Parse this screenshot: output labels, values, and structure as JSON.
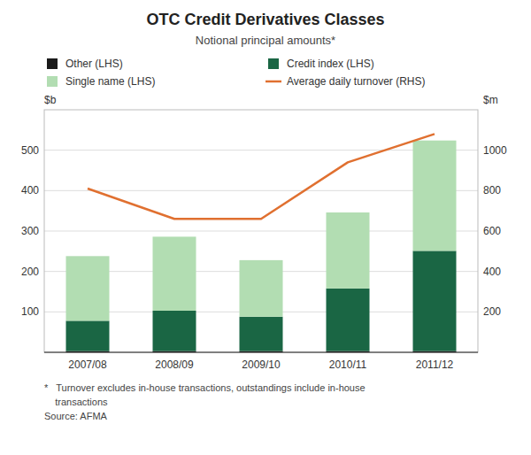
{
  "chart_data": {
    "type": "bar",
    "stacked": true,
    "title": "OTC Credit Derivatives Classes",
    "subtitle": "Notional principal amounts*",
    "ylabel": "$b",
    "y2label": "$m",
    "footnotes": [
      "*   Turnover excludes in-house transactions, outstandings include in-house",
      "    transactions",
      "Source: AFMA"
    ],
    "categories": [
      "2007/08",
      "2008/09",
      "2009/10",
      "2010/11",
      "2011/12"
    ],
    "series": [
      {
        "name": "Other (LHS)",
        "color": "#1a1a1a",
        "values": [
          3,
          3,
          3,
          3,
          3
        ]
      },
      {
        "name": "Credit index (LHS)",
        "color": "#1a6644",
        "values": [
          75,
          100,
          85,
          155,
          248
        ]
      },
      {
        "name": "Single name (LHS)",
        "color": "#b2ddb2",
        "values": [
          160,
          183,
          140,
          188,
          273
        ]
      },
      {
        "name": "Average daily turnover (RHS)",
        "type": "line",
        "axis": "y2",
        "color": "#e07030",
        "values": [
          810,
          660,
          660,
          940,
          1080
        ]
      }
    ],
    "ylim": [
      0,
      600
    ],
    "yticks": [
      100,
      200,
      300,
      400,
      500
    ],
    "y2lim": [
      0,
      1200
    ],
    "y2ticks": [
      200,
      400,
      600,
      800,
      1000
    ],
    "grid": true,
    "legend": "top"
  }
}
